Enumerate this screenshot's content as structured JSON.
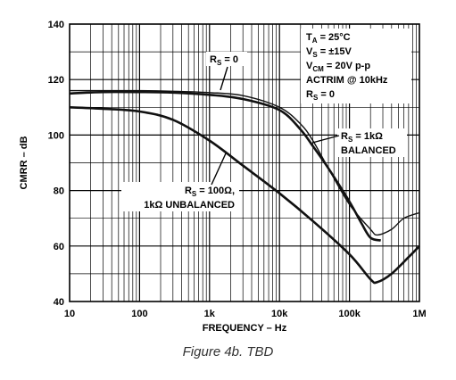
{
  "caption": "Figure 4b. TBD",
  "chart_data": {
    "type": "line",
    "xscale": "log",
    "xlim": [
      10,
      1000000
    ],
    "ylim": [
      40,
      140
    ],
    "xlabel": "FREQUENCY – Hz",
    "ylabel": "CMRR – dB",
    "x_ticks": [
      "10",
      "100",
      "1k",
      "10k",
      "100k",
      "1M"
    ],
    "y_ticks": [
      "40",
      "60",
      "80",
      "100",
      "120",
      "140"
    ],
    "grid": true,
    "conditions": [
      {
        "main": "T",
        "sub": "A",
        "rest": " = 25°C"
      },
      {
        "main": "V",
        "sub": "S",
        "rest": " = ±15V"
      },
      {
        "main": "V",
        "sub": "CM",
        "rest": " = 20V p-p"
      },
      {
        "main": "ACTRIM @ 10kHz",
        "sub": "",
        "rest": ""
      },
      {
        "main": "R",
        "sub": "S",
        "rest": " = 0"
      }
    ],
    "series": [
      {
        "label": {
          "main": "R",
          "sub": "S",
          "rest": " = 0"
        },
        "points": [
          [
            10,
            116
          ],
          [
            30,
            116
          ],
          [
            100,
            116
          ],
          [
            300,
            115.8
          ],
          [
            1000,
            115.3
          ],
          [
            3000,
            114.2
          ],
          [
            10000,
            110
          ],
          [
            20000,
            104
          ],
          [
            30000,
            98
          ],
          [
            50000,
            88
          ],
          [
            100000,
            75
          ],
          [
            200000,
            66
          ],
          [
            250000,
            64
          ],
          [
            400000,
            66
          ],
          [
            600000,
            70
          ],
          [
            1000000,
            72
          ]
        ]
      },
      {
        "label": {
          "main": "R",
          "sub": "S",
          "rest": " = 1kΩ",
          "line2": "BALANCED"
        },
        "points": [
          [
            10,
            115
          ],
          [
            30,
            115.5
          ],
          [
            100,
            115.5
          ],
          [
            300,
            115.3
          ],
          [
            1000,
            114.5
          ],
          [
            3000,
            113
          ],
          [
            10000,
            109
          ],
          [
            20000,
            102
          ],
          [
            30000,
            96
          ],
          [
            50000,
            88
          ],
          [
            100000,
            76
          ],
          [
            150000,
            68
          ],
          [
            200000,
            63
          ],
          [
            280000,
            62
          ]
        ]
      },
      {
        "label": {
          "main": "R",
          "sub": "S",
          "rest": " = 100Ω,",
          "line2": "1kΩ UNBALANCED"
        },
        "points": [
          [
            10,
            110
          ],
          [
            30,
            109.5
          ],
          [
            100,
            108.5
          ],
          [
            300,
            105.5
          ],
          [
            1000,
            98
          ],
          [
            3000,
            89
          ],
          [
            10000,
            79
          ],
          [
            30000,
            69
          ],
          [
            100000,
            57
          ],
          [
            200000,
            48
          ],
          [
            250000,
            47
          ],
          [
            400000,
            50
          ],
          [
            700000,
            56
          ],
          [
            1000000,
            60
          ]
        ]
      }
    ]
  }
}
